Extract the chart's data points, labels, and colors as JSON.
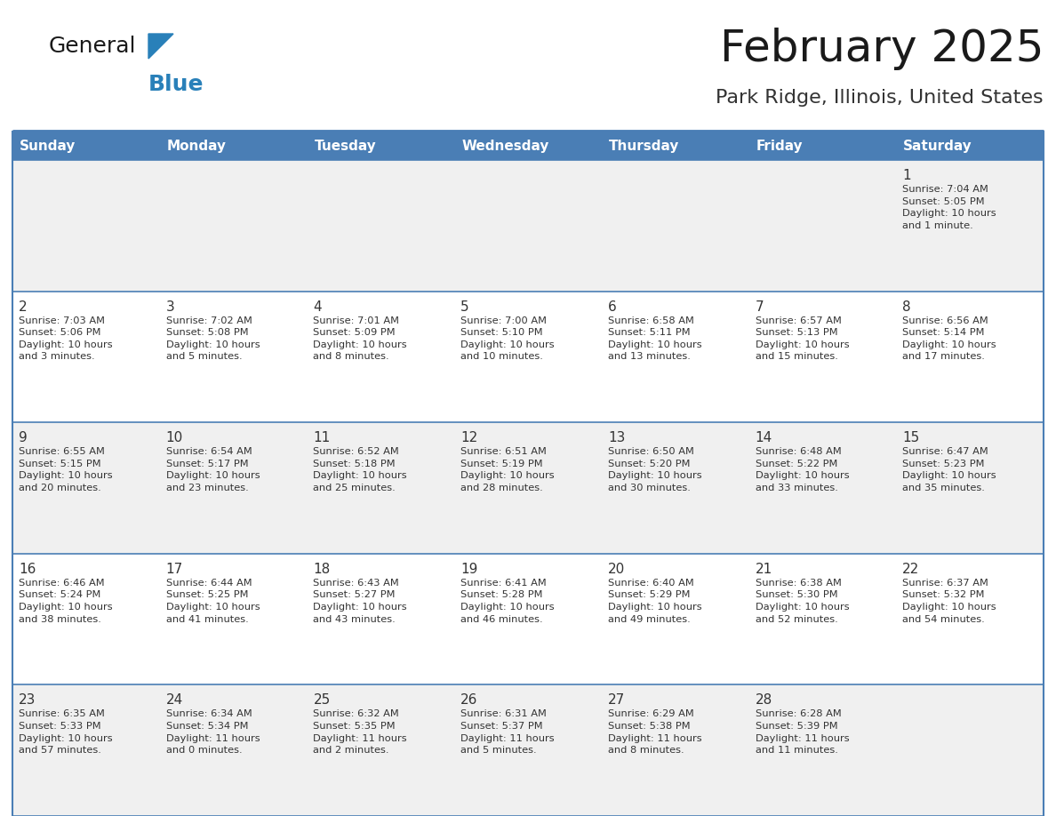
{
  "title": "February 2025",
  "subtitle": "Park Ridge, Illinois, United States",
  "header_bg": "#4a7eb5",
  "header_text_color": "#ffffff",
  "day_names": [
    "Sunday",
    "Monday",
    "Tuesday",
    "Wednesday",
    "Thursday",
    "Friday",
    "Saturday"
  ],
  "row_bg_odd": "#f0f0f0",
  "row_bg_even": "#ffffff",
  "border_color": "#4a7eb5",
  "text_color": "#333333",
  "day_num_color": "#333333",
  "logo_color_general": "#1a1a1a",
  "logo_color_blue": "#2980b9",
  "logo_triangle_color": "#2980b9",
  "cal_data": [
    [
      {
        "day": null,
        "info": ""
      },
      {
        "day": null,
        "info": ""
      },
      {
        "day": null,
        "info": ""
      },
      {
        "day": null,
        "info": ""
      },
      {
        "day": null,
        "info": ""
      },
      {
        "day": null,
        "info": ""
      },
      {
        "day": 1,
        "info": "Sunrise: 7:04 AM\nSunset: 5:05 PM\nDaylight: 10 hours\nand 1 minute."
      }
    ],
    [
      {
        "day": 2,
        "info": "Sunrise: 7:03 AM\nSunset: 5:06 PM\nDaylight: 10 hours\nand 3 minutes."
      },
      {
        "day": 3,
        "info": "Sunrise: 7:02 AM\nSunset: 5:08 PM\nDaylight: 10 hours\nand 5 minutes."
      },
      {
        "day": 4,
        "info": "Sunrise: 7:01 AM\nSunset: 5:09 PM\nDaylight: 10 hours\nand 8 minutes."
      },
      {
        "day": 5,
        "info": "Sunrise: 7:00 AM\nSunset: 5:10 PM\nDaylight: 10 hours\nand 10 minutes."
      },
      {
        "day": 6,
        "info": "Sunrise: 6:58 AM\nSunset: 5:11 PM\nDaylight: 10 hours\nand 13 minutes."
      },
      {
        "day": 7,
        "info": "Sunrise: 6:57 AM\nSunset: 5:13 PM\nDaylight: 10 hours\nand 15 minutes."
      },
      {
        "day": 8,
        "info": "Sunrise: 6:56 AM\nSunset: 5:14 PM\nDaylight: 10 hours\nand 17 minutes."
      }
    ],
    [
      {
        "day": 9,
        "info": "Sunrise: 6:55 AM\nSunset: 5:15 PM\nDaylight: 10 hours\nand 20 minutes."
      },
      {
        "day": 10,
        "info": "Sunrise: 6:54 AM\nSunset: 5:17 PM\nDaylight: 10 hours\nand 23 minutes."
      },
      {
        "day": 11,
        "info": "Sunrise: 6:52 AM\nSunset: 5:18 PM\nDaylight: 10 hours\nand 25 minutes."
      },
      {
        "day": 12,
        "info": "Sunrise: 6:51 AM\nSunset: 5:19 PM\nDaylight: 10 hours\nand 28 minutes."
      },
      {
        "day": 13,
        "info": "Sunrise: 6:50 AM\nSunset: 5:20 PM\nDaylight: 10 hours\nand 30 minutes."
      },
      {
        "day": 14,
        "info": "Sunrise: 6:48 AM\nSunset: 5:22 PM\nDaylight: 10 hours\nand 33 minutes."
      },
      {
        "day": 15,
        "info": "Sunrise: 6:47 AM\nSunset: 5:23 PM\nDaylight: 10 hours\nand 35 minutes."
      }
    ],
    [
      {
        "day": 16,
        "info": "Sunrise: 6:46 AM\nSunset: 5:24 PM\nDaylight: 10 hours\nand 38 minutes."
      },
      {
        "day": 17,
        "info": "Sunrise: 6:44 AM\nSunset: 5:25 PM\nDaylight: 10 hours\nand 41 minutes."
      },
      {
        "day": 18,
        "info": "Sunrise: 6:43 AM\nSunset: 5:27 PM\nDaylight: 10 hours\nand 43 minutes."
      },
      {
        "day": 19,
        "info": "Sunrise: 6:41 AM\nSunset: 5:28 PM\nDaylight: 10 hours\nand 46 minutes."
      },
      {
        "day": 20,
        "info": "Sunrise: 6:40 AM\nSunset: 5:29 PM\nDaylight: 10 hours\nand 49 minutes."
      },
      {
        "day": 21,
        "info": "Sunrise: 6:38 AM\nSunset: 5:30 PM\nDaylight: 10 hours\nand 52 minutes."
      },
      {
        "day": 22,
        "info": "Sunrise: 6:37 AM\nSunset: 5:32 PM\nDaylight: 10 hours\nand 54 minutes."
      }
    ],
    [
      {
        "day": 23,
        "info": "Sunrise: 6:35 AM\nSunset: 5:33 PM\nDaylight: 10 hours\nand 57 minutes."
      },
      {
        "day": 24,
        "info": "Sunrise: 6:34 AM\nSunset: 5:34 PM\nDaylight: 11 hours\nand 0 minutes."
      },
      {
        "day": 25,
        "info": "Sunrise: 6:32 AM\nSunset: 5:35 PM\nDaylight: 11 hours\nand 2 minutes."
      },
      {
        "day": 26,
        "info": "Sunrise: 6:31 AM\nSunset: 5:37 PM\nDaylight: 11 hours\nand 5 minutes."
      },
      {
        "day": 27,
        "info": "Sunrise: 6:29 AM\nSunset: 5:38 PM\nDaylight: 11 hours\nand 8 minutes."
      },
      {
        "day": 28,
        "info": "Sunrise: 6:28 AM\nSunset: 5:39 PM\nDaylight: 11 hours\nand 11 minutes."
      },
      {
        "day": null,
        "info": ""
      }
    ]
  ]
}
